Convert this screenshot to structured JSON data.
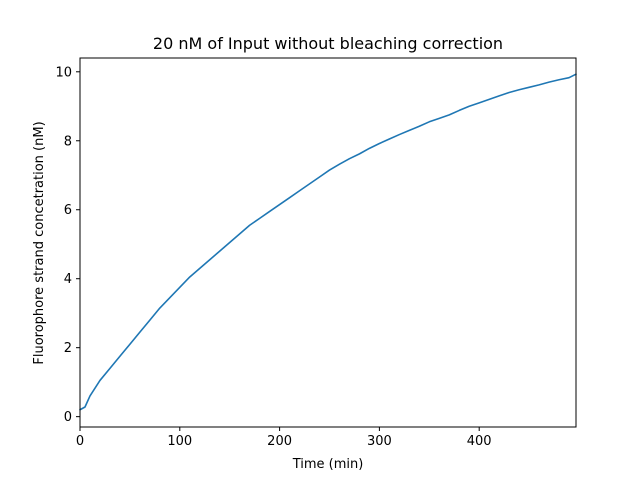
{
  "chart_data": {
    "type": "line",
    "title": "20 nM of Input without bleaching correction",
    "xlabel": "Time (min)",
    "ylabel": "Fluorophore strand concetration (nM)",
    "xlim": [
      0,
      497
    ],
    "ylim": [
      -0.3,
      10.4
    ],
    "xticks": [
      0,
      100,
      200,
      300,
      400
    ],
    "yticks": [
      0,
      2,
      4,
      6,
      8,
      10
    ],
    "grid": false,
    "colors": {
      "series": "#1f77b4"
    },
    "series": [
      {
        "x": [
          0,
          5,
          10,
          20,
          30,
          40,
          50,
          60,
          70,
          80,
          90,
          100,
          110,
          120,
          130,
          140,
          150,
          160,
          170,
          180,
          190,
          200,
          210,
          220,
          230,
          240,
          250,
          260,
          270,
          280,
          290,
          300,
          310,
          320,
          330,
          340,
          350,
          360,
          370,
          380,
          390,
          400,
          410,
          420,
          430,
          440,
          450,
          460,
          470,
          480,
          490,
          497
        ],
        "y": [
          0.2,
          0.28,
          0.6,
          1.05,
          1.4,
          1.75,
          2.1,
          2.45,
          2.8,
          3.15,
          3.45,
          3.75,
          4.05,
          4.3,
          4.55,
          4.8,
          5.05,
          5.3,
          5.55,
          5.75,
          5.95,
          6.15,
          6.35,
          6.55,
          6.75,
          6.95,
          7.15,
          7.32,
          7.48,
          7.62,
          7.78,
          7.92,
          8.05,
          8.18,
          8.3,
          8.42,
          8.55,
          8.65,
          8.75,
          8.88,
          9.0,
          9.1,
          9.2,
          9.3,
          9.4,
          9.48,
          9.55,
          9.62,
          9.7,
          9.77,
          9.83,
          9.93
        ]
      }
    ]
  }
}
